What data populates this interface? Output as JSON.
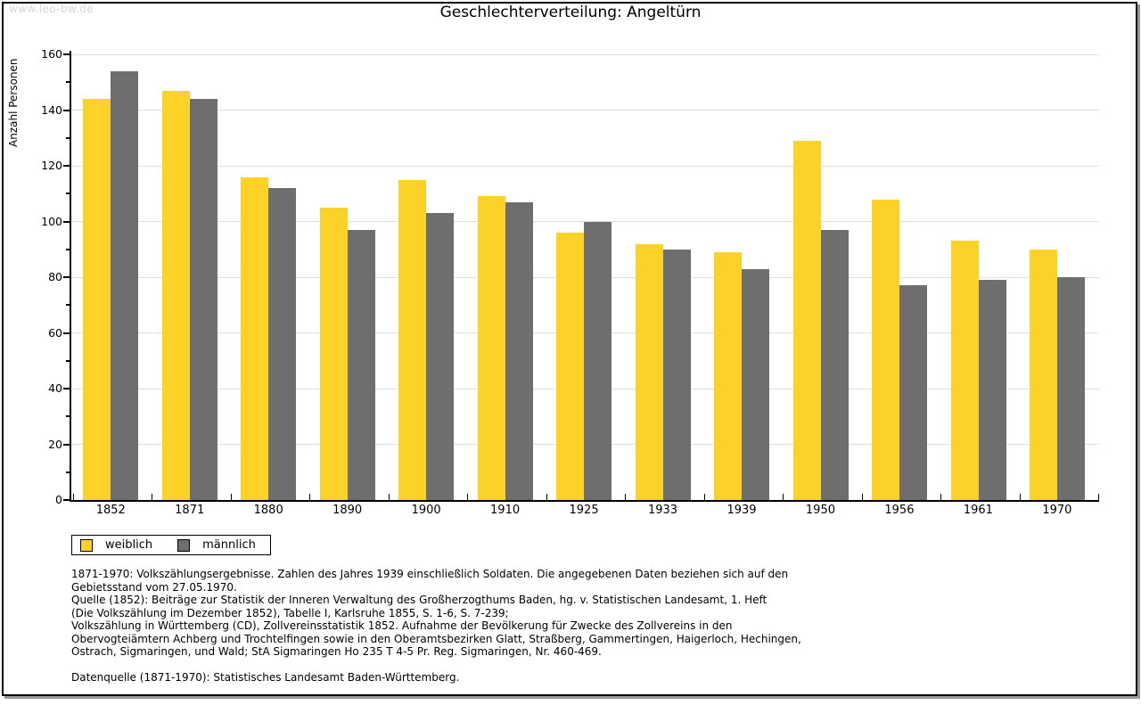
{
  "watermark": "www.leo-bw.de",
  "title": "Geschlechterverteilung: Angeltürn",
  "chart_data": {
    "type": "bar",
    "title": "Geschlechterverteilung: Angeltürn",
    "xlabel": "",
    "ylabel": "Anzahl Personen",
    "ylim": [
      0,
      160
    ],
    "yticks": [
      0,
      20,
      40,
      60,
      80,
      100,
      120,
      140,
      160
    ],
    "ytick_minor_step": 10,
    "grid": true,
    "legend_position": "bottom-left",
    "categories": [
      "1852",
      "1871",
      "1880",
      "1890",
      "1900",
      "1910",
      "1925",
      "1933",
      "1939",
      "1950",
      "1956",
      "1961",
      "1970"
    ],
    "series": [
      {
        "name": "weiblich",
        "color": "#fcd229",
        "values": [
          144,
          147,
          116,
          105,
          115,
          109,
          96,
          92,
          89,
          129,
          108,
          93,
          90
        ]
      },
      {
        "name": "männlich",
        "color": "#6e6e6e",
        "values": [
          154,
          144,
          112,
          97,
          103,
          107,
          100,
          90,
          83,
          97,
          77,
          79,
          80
        ]
      }
    ]
  },
  "colors": {
    "grid": "#dedede",
    "axis": "#000000",
    "watermark": "#d6d6d6",
    "female": "#fcd229",
    "male": "#6e6e6e"
  },
  "footnotes": {
    "paragraph1_lines": [
      "1871-1970: Volkszählungsergebnisse. Zahlen des Jahres 1939 einschließlich Soldaten. Die angegebenen Daten beziehen sich auf den",
      "Gebietsstand vom 27.05.1970.",
      "Quelle (1852): Beiträge zur Statistik der Inneren Verwaltung des Großherzogthums Baden, hg. v. Statistischen Landesamt, 1. Heft",
      "(Die Volkszählung im Dezember 1852), Tabelle I, Karlsruhe 1855, S. 1-6, S. 7-239;",
      "Volkszählung in Württemberg (CD), Zollvereinsstatistik 1852. Aufnahme der Bevölkerung für Zwecke des Zollvereins in den",
      "Obervogteiämtern Achberg und Trochtelfingen sowie in den Oberamtsbezirken Glatt, Straßberg, Gammertingen, Haigerloch, Hechingen,",
      "Ostrach, Sigmaringen, und Wald; StA Sigmaringen Ho 235 T 4-5 Pr. Reg. Sigmaringen, Nr. 460-469."
    ],
    "paragraph2_lines": [
      "Datenquelle (1871-1970): Statistisches Landesamt Baden-Württemberg."
    ]
  }
}
